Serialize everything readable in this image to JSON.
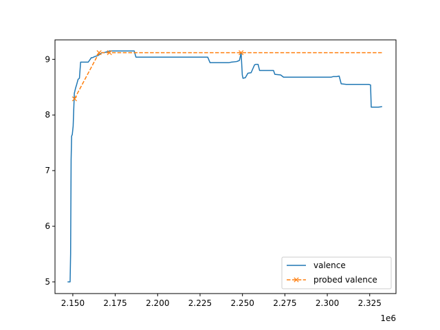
{
  "chart_data": {
    "type": "line",
    "title": "",
    "xlabel": "",
    "ylabel": "",
    "x_offset_label": "1e6",
    "xlim": [
      2.1395,
      2.3405
    ],
    "ylim": [
      4.79,
      9.35
    ],
    "x_ticks": [
      2.15,
      2.175,
      2.2,
      2.225,
      2.25,
      2.275,
      2.3,
      2.325
    ],
    "x_tick_labels": [
      "2.150",
      "2.175",
      "2.200",
      "2.225",
      "2.250",
      "2.275",
      "2.300",
      "2.325"
    ],
    "y_ticks": [
      5,
      6,
      7,
      8,
      9
    ],
    "y_tick_labels": [
      "5",
      "6",
      "7",
      "8",
      "9"
    ],
    "grid": false,
    "legend_position": "lower-right",
    "series": [
      {
        "name": "valence",
        "color": "#1f77b4",
        "style": "solid",
        "marker": "none",
        "x": [
          2.1469,
          2.1484,
          2.1487,
          2.149,
          2.1493,
          2.1497,
          2.1502,
          2.1509,
          2.1516,
          2.1523,
          2.1531,
          2.1539,
          2.1546,
          2.1553,
          2.1567,
          2.1591,
          2.1609,
          2.1616,
          2.1629,
          2.1639,
          2.165,
          2.1671,
          2.1685,
          2.1715,
          2.1775,
          2.185,
          2.1862,
          2.1872,
          2.2,
          2.225,
          2.2295,
          2.2309,
          2.2325,
          2.2419,
          2.2435,
          2.2465,
          2.2474,
          2.2482,
          2.2488,
          2.2492,
          2.2499,
          2.2503,
          2.2517,
          2.2532,
          2.2551,
          2.2571,
          2.2577,
          2.2592,
          2.2601,
          2.2613,
          2.2653,
          2.2683,
          2.2691,
          2.2725,
          2.2742,
          2.2756,
          2.2834,
          2.2951,
          2.3024,
          2.3034,
          2.3056,
          2.307,
          2.3082,
          2.3112,
          2.3169,
          2.3222,
          2.3244,
          2.3255,
          2.3259,
          2.3263,
          2.3276,
          2.33,
          2.3323
        ],
        "y": [
          5.0,
          5.0,
          5.5,
          7.2,
          7.62,
          7.65,
          7.8,
          8.39,
          8.48,
          8.55,
          8.64,
          8.66,
          8.95,
          8.95,
          8.95,
          8.95,
          9.03,
          9.03,
          9.05,
          9.06,
          9.07,
          9.12,
          9.12,
          9.15,
          9.15,
          9.15,
          9.15,
          9.04,
          9.04,
          9.04,
          9.04,
          8.94,
          8.94,
          8.94,
          8.95,
          8.96,
          8.97,
          8.98,
          9.06,
          9.12,
          8.72,
          8.66,
          8.67,
          8.75,
          8.76,
          8.9,
          8.91,
          8.91,
          8.8,
          8.8,
          8.8,
          8.8,
          8.73,
          8.72,
          8.68,
          8.68,
          8.68,
          8.68,
          8.68,
          8.69,
          8.69,
          8.7,
          8.56,
          8.55,
          8.55,
          8.55,
          8.55,
          8.54,
          8.14,
          8.14,
          8.14,
          8.14,
          8.15
        ]
      },
      {
        "name": "probed valence",
        "color": "#ff7f0e",
        "style": "dashed",
        "marker": "x",
        "x": [
          2.151,
          2.1655,
          2.1716,
          2.2492,
          2.3323
        ],
        "y": [
          8.29,
          9.12,
          9.12,
          9.12,
          9.12
        ],
        "marker_indices": [
          0,
          1,
          2,
          3
        ]
      }
    ]
  }
}
